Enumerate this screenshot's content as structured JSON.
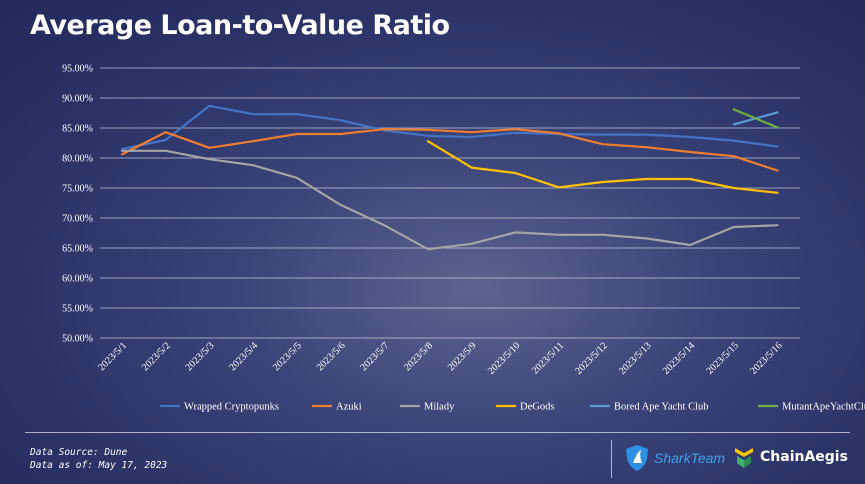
{
  "title": "Average Loan-to-Value Ratio",
  "chart_data": {
    "type": "line",
    "title": "Average Loan-to-Value Ratio",
    "xlabel": "",
    "ylabel": "",
    "ylim": [
      50,
      95
    ],
    "ytick_step": 5,
    "ytick_labels": [
      "50.00%",
      "55.00%",
      "60.00%",
      "65.00%",
      "70.00%",
      "75.00%",
      "80.00%",
      "85.00%",
      "90.00%",
      "95.00%"
    ],
    "grid": true,
    "legend_position": "bottom",
    "categories": [
      "2023/5/1",
      "2023/5/2",
      "2023/5/3",
      "2023/5/4",
      "2023/5/5",
      "2023/5/6",
      "2023/5/7",
      "2023/5/8",
      "2023/5/9",
      "2023/5/10",
      "2023/5/11",
      "2023/5/12",
      "2023/5/13",
      "2023/5/14",
      "2023/5/15",
      "2023/5/16"
    ],
    "series": [
      {
        "name": "Wrapped Cryptopunks",
        "color": "#4472c4",
        "values": [
          81.5,
          83.0,
          88.7,
          87.3,
          87.3,
          86.3,
          84.6,
          83.7,
          83.5,
          84.2,
          84.0,
          83.9,
          83.9,
          83.5,
          82.9,
          81.9
        ]
      },
      {
        "name": "Azuki",
        "color": "#ed7d31",
        "values": [
          80.6,
          84.3,
          81.7,
          82.8,
          84.0,
          84.0,
          84.8,
          84.7,
          84.3,
          84.8,
          84.1,
          82.3,
          81.8,
          81.0,
          80.3,
          77.9
        ]
      },
      {
        "name": "Milady",
        "color": "#a5a5a5",
        "values": [
          81.2,
          81.2,
          79.8,
          78.8,
          76.7,
          72.2,
          68.8,
          64.8,
          65.7,
          67.6,
          67.2,
          67.2,
          66.6,
          65.5,
          68.5,
          68.8
        ]
      },
      {
        "name": "DeGods",
        "color": "#ffc000",
        "values": [
          null,
          null,
          null,
          null,
          null,
          null,
          null,
          82.8,
          78.4,
          77.5,
          75.1,
          76.0,
          76.5,
          76.5,
          75.0,
          74.2
        ]
      },
      {
        "name": "Bored Ape Yacht Club",
        "color": "#5b9bd5",
        "values": [
          null,
          null,
          null,
          null,
          null,
          null,
          null,
          null,
          null,
          null,
          null,
          null,
          null,
          null,
          85.6,
          87.6
        ]
      },
      {
        "name": "MutantApeYachtClub",
        "color": "#70ad47",
        "values": [
          null,
          null,
          null,
          null,
          null,
          null,
          null,
          null,
          null,
          null,
          null,
          null,
          null,
          null,
          88.1,
          85.1
        ]
      }
    ]
  },
  "footer": {
    "source": "Data Source: Dune",
    "asof": "Data as of: May 17, 2023"
  },
  "brands": {
    "shark": "SharkTeam",
    "chainaegis": "ChainAegis"
  }
}
